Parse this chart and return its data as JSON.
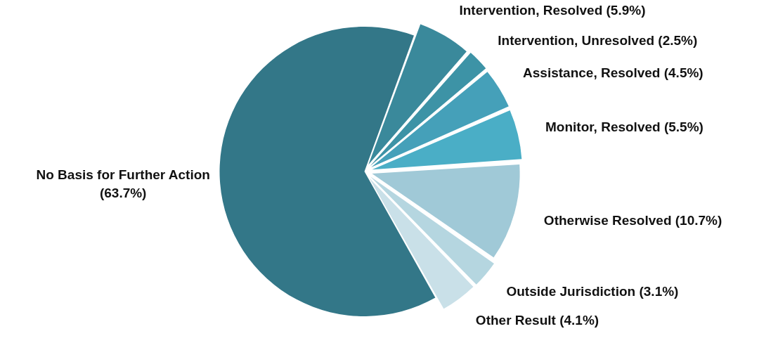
{
  "chart_data": {
    "type": "pie",
    "categories": [
      "Intervention, Resolved",
      "Intervention, Unresolved",
      "Assistance, Resolved",
      "Monitor, Resolved",
      "Otherwise Resolved",
      "Outside Jurisdiction",
      "Other Result",
      "No Basis for Further Action"
    ],
    "values": [
      5.9,
      2.5,
      4.5,
      5.5,
      10.7,
      3.1,
      4.1,
      63.7
    ],
    "value_labels": [
      "(5.9%)",
      "(2.5%)",
      "(4.5%)",
      "(5.5%)",
      "(10.7%)",
      "(3.1%)",
      "(4.1%)",
      "(63.7%)"
    ],
    "colors": [
      "#3a899b",
      "#3d93a6",
      "#45a0b9",
      "#4aaec6",
      "#a0c9d7",
      "#b5d6e0",
      "#c9e0e8",
      "#337788"
    ],
    "legend": false
  }
}
